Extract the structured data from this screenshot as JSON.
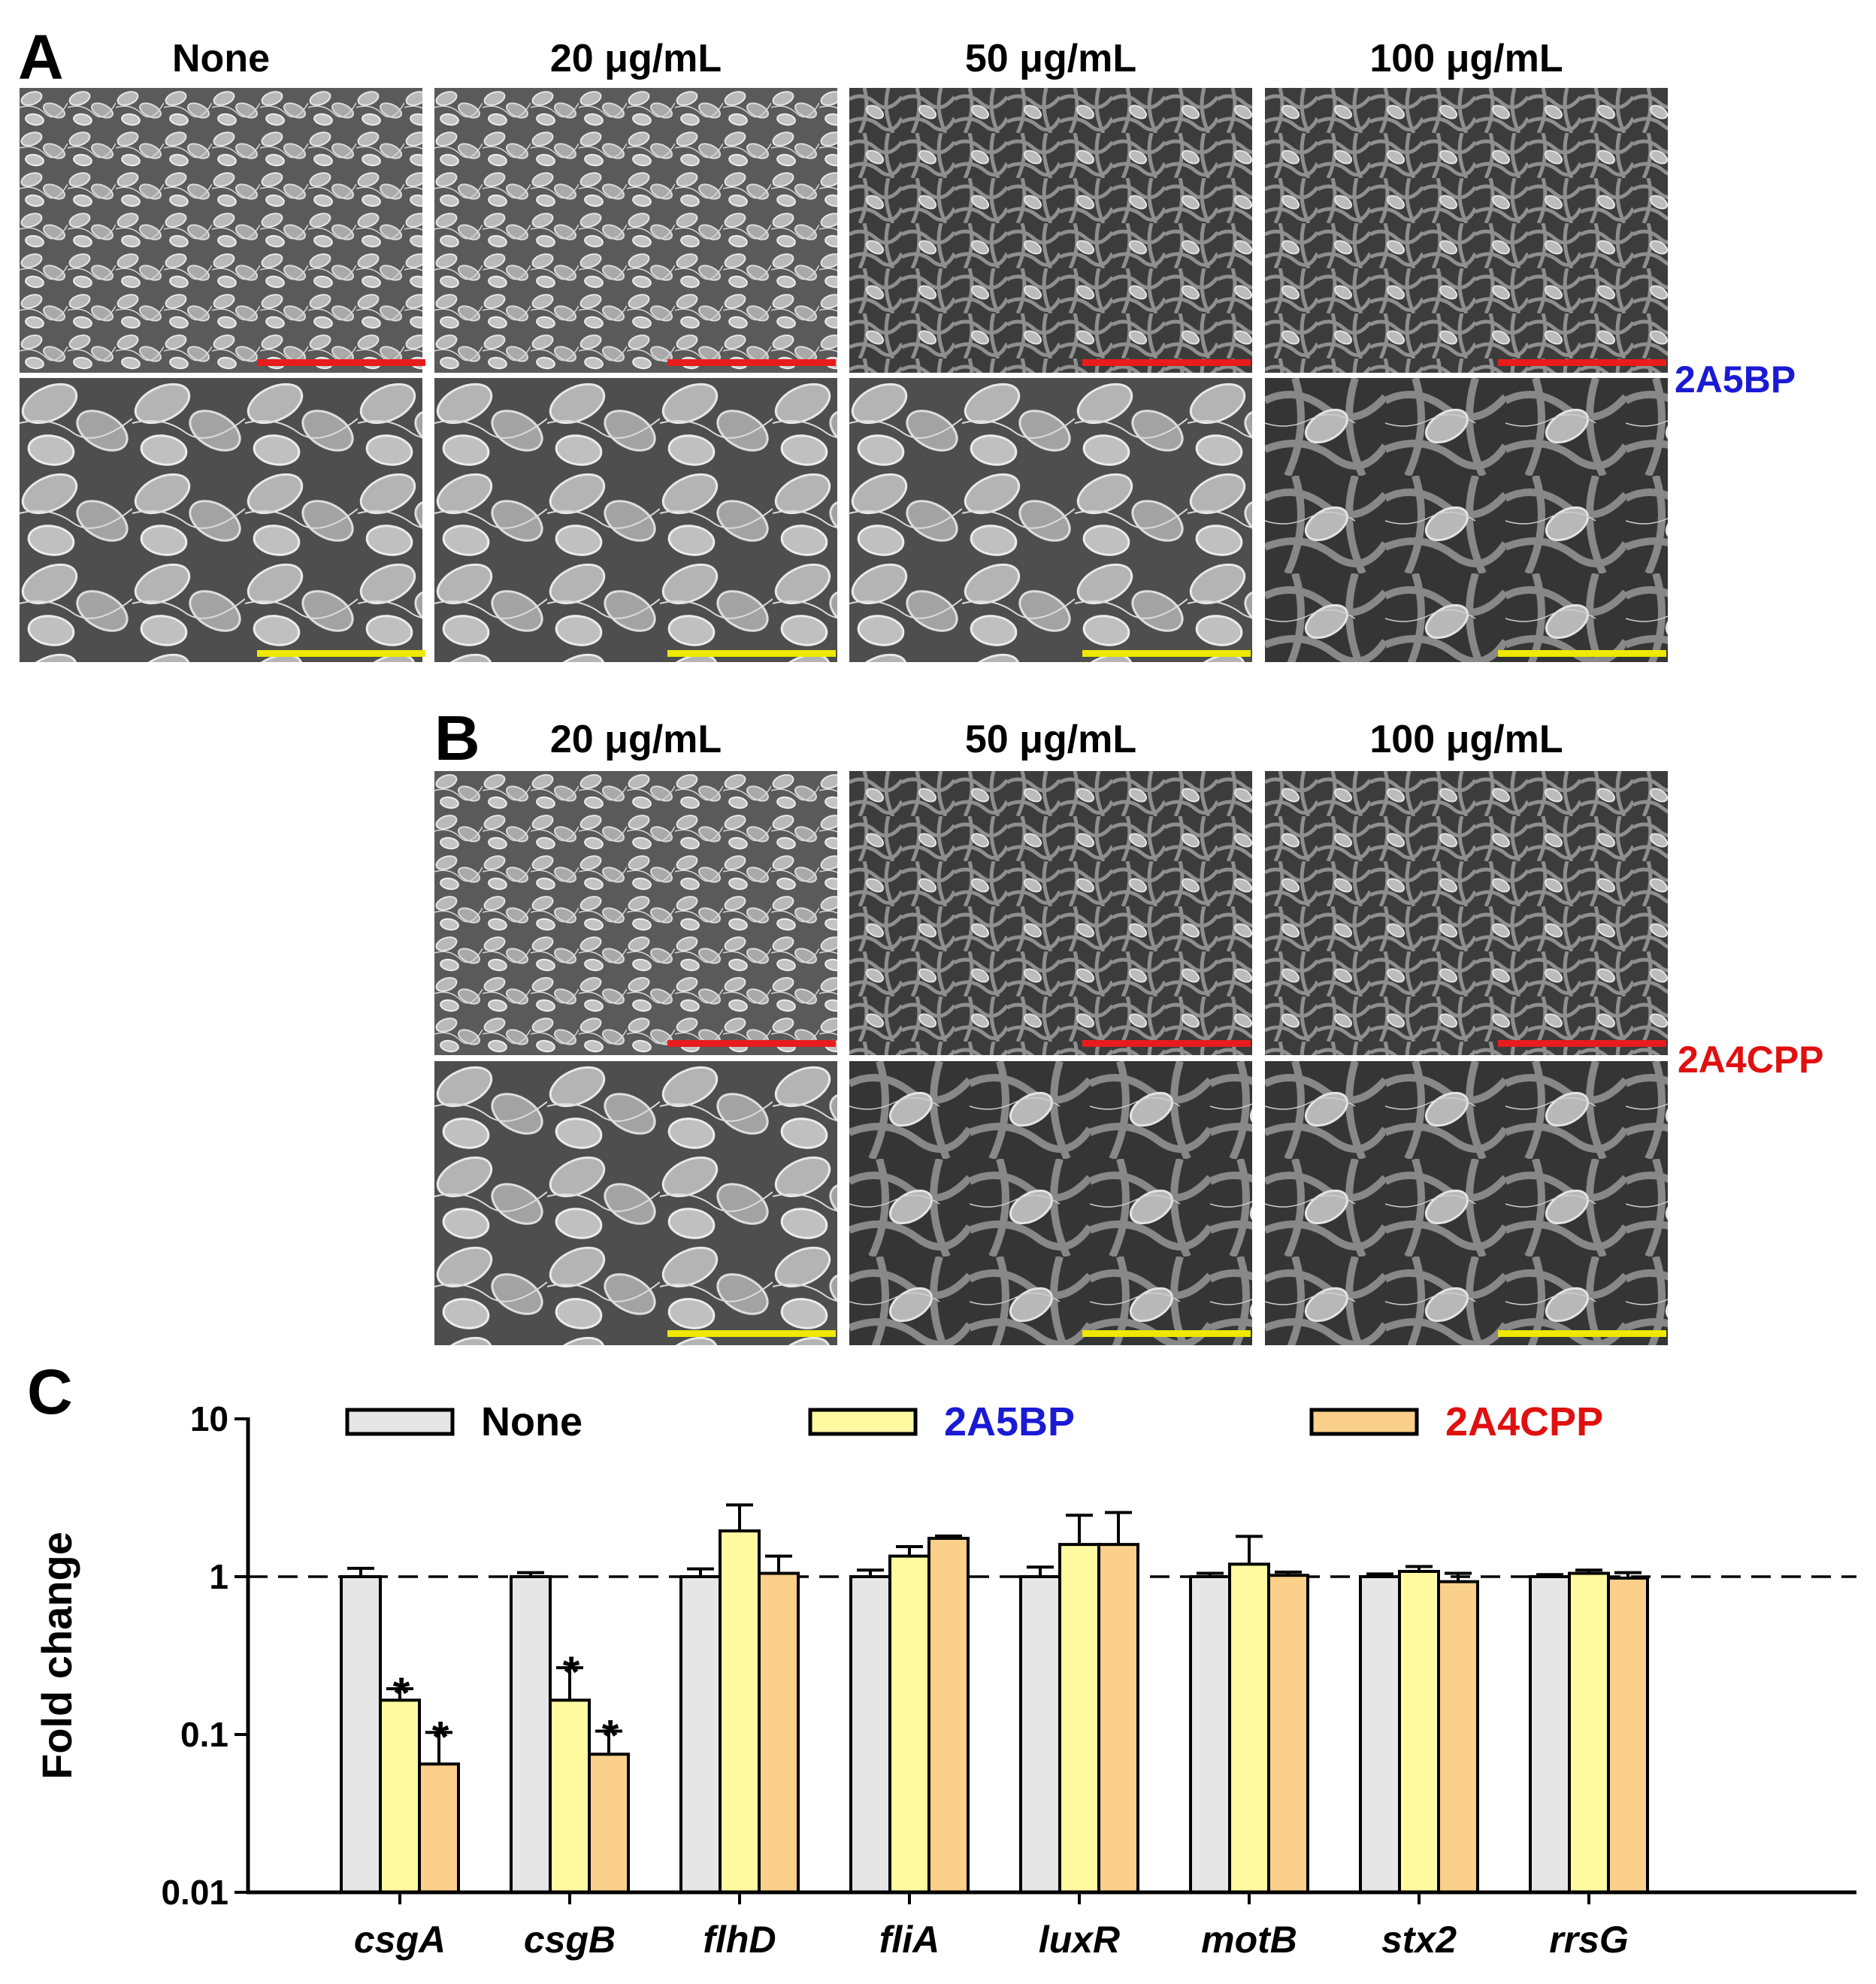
{
  "panel_a": {
    "letter": "A",
    "columns": [
      "None",
      "20 μg/mL",
      "50 μg/mL",
      "100 μg/mL"
    ],
    "row_label": "2A5BP",
    "row_label_color": "#1a1ad4"
  },
  "panel_b": {
    "letter": "B",
    "columns": [
      "20 μg/mL",
      "50 μg/mL",
      "100 μg/mL"
    ],
    "row_label": "2A4CPP",
    "row_label_color": "#e01010"
  },
  "scale_bar_colors": {
    "top_row": "#e81c1c",
    "bottom_row": "#f0e800"
  },
  "panel_c": {
    "letter": "C"
  },
  "chart_data": {
    "type": "bar",
    "yscale": "log",
    "ylabel": "Fold change",
    "ylim": [
      0.01,
      10
    ],
    "yticks": [
      "0.01",
      "0.1",
      "1",
      "10"
    ],
    "reference_line": 1,
    "categories": [
      "csgA",
      "csgB",
      "flhD",
      "fliA",
      "luxR",
      "motB",
      "stx2",
      "rrsG"
    ],
    "series": [
      {
        "name": "None",
        "color": "#e6e6e6",
        "legend_text_color": "#000000",
        "values": [
          1.0,
          1.0,
          1.0,
          1.0,
          1.0,
          1.0,
          1.0,
          1.0
        ],
        "errors": [
          0.13,
          0.06,
          0.12,
          0.1,
          0.15,
          0.05,
          0.04,
          0.03
        ]
      },
      {
        "name": "2A5BP",
        "color": "#fffaa0",
        "legend_text_color": "#1a1ad4",
        "values": [
          0.165,
          0.165,
          1.95,
          1.35,
          1.6,
          1.2,
          1.08,
          1.05
        ],
        "errors": [
          0.03,
          0.1,
          0.9,
          0.2,
          0.85,
          0.6,
          0.08,
          0.05
        ]
      },
      {
        "name": "2A4CPP",
        "color": "#fad08a",
        "legend_text_color": "#e01010",
        "values": [
          0.065,
          0.075,
          1.05,
          1.75,
          1.6,
          1.02,
          0.93,
          0.98
        ],
        "errors": [
          0.038,
          0.03,
          0.3,
          0.06,
          0.95,
          0.05,
          0.12,
          0.08
        ]
      }
    ],
    "significance": [
      {
        "category": "csgA",
        "series": "2A5BP",
        "mark": "*"
      },
      {
        "category": "csgA",
        "series": "2A4CPP",
        "mark": "*"
      },
      {
        "category": "csgB",
        "series": "2A5BP",
        "mark": "*"
      },
      {
        "category": "csgB",
        "series": "2A4CPP",
        "mark": "*"
      }
    ]
  }
}
